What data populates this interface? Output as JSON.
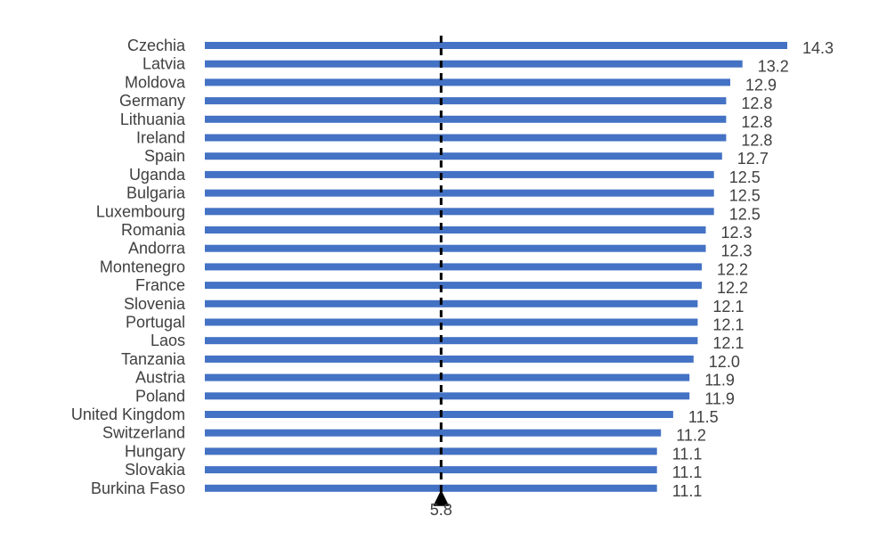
{
  "chart_data": {
    "type": "bar",
    "orientation": "horizontal",
    "categories": [
      "Czechia",
      "Latvia",
      "Moldova",
      "Germany",
      "Lithuania",
      "Ireland",
      "Spain",
      "Uganda",
      "Bulgaria",
      "Luxembourg",
      "Romania",
      "Andorra",
      "Montenegro",
      "France",
      "Slovenia",
      "Portugal",
      "Laos",
      "Tanzania",
      "Austria",
      "Poland",
      "United Kingdom",
      "Switzerland",
      "Hungary",
      "Slovakia",
      "Burkina Faso"
    ],
    "values": [
      14.3,
      13.2,
      12.9,
      12.8,
      12.8,
      12.8,
      12.7,
      12.5,
      12.5,
      12.5,
      12.3,
      12.3,
      12.2,
      12.2,
      12.1,
      12.1,
      12.1,
      12.0,
      11.9,
      11.9,
      11.5,
      11.2,
      11.1,
      11.1,
      11.1
    ],
    "value_labels": [
      "14.3",
      "13.2",
      "12.9",
      "12.8",
      "12.8",
      "12.8",
      "12.7",
      "12.5",
      "12.5",
      "12.5",
      "12.3",
      "12.3",
      "12.2",
      "12.2",
      "12.1",
      "12.1",
      "12.1",
      "12.0",
      "11.9",
      "11.9",
      "11.5",
      "11.2",
      "11.1",
      "11.1",
      "11.1"
    ],
    "xlim": [
      0,
      14.3
    ],
    "reference_line": {
      "value": 5.8,
      "label": "5.8",
      "style": "dashed"
    },
    "title": "",
    "xlabel": "",
    "ylabel": "",
    "grid": false,
    "legend": "none",
    "colors": {
      "bar": "#4472C4",
      "text": "#404040",
      "reference": "#000000"
    }
  }
}
